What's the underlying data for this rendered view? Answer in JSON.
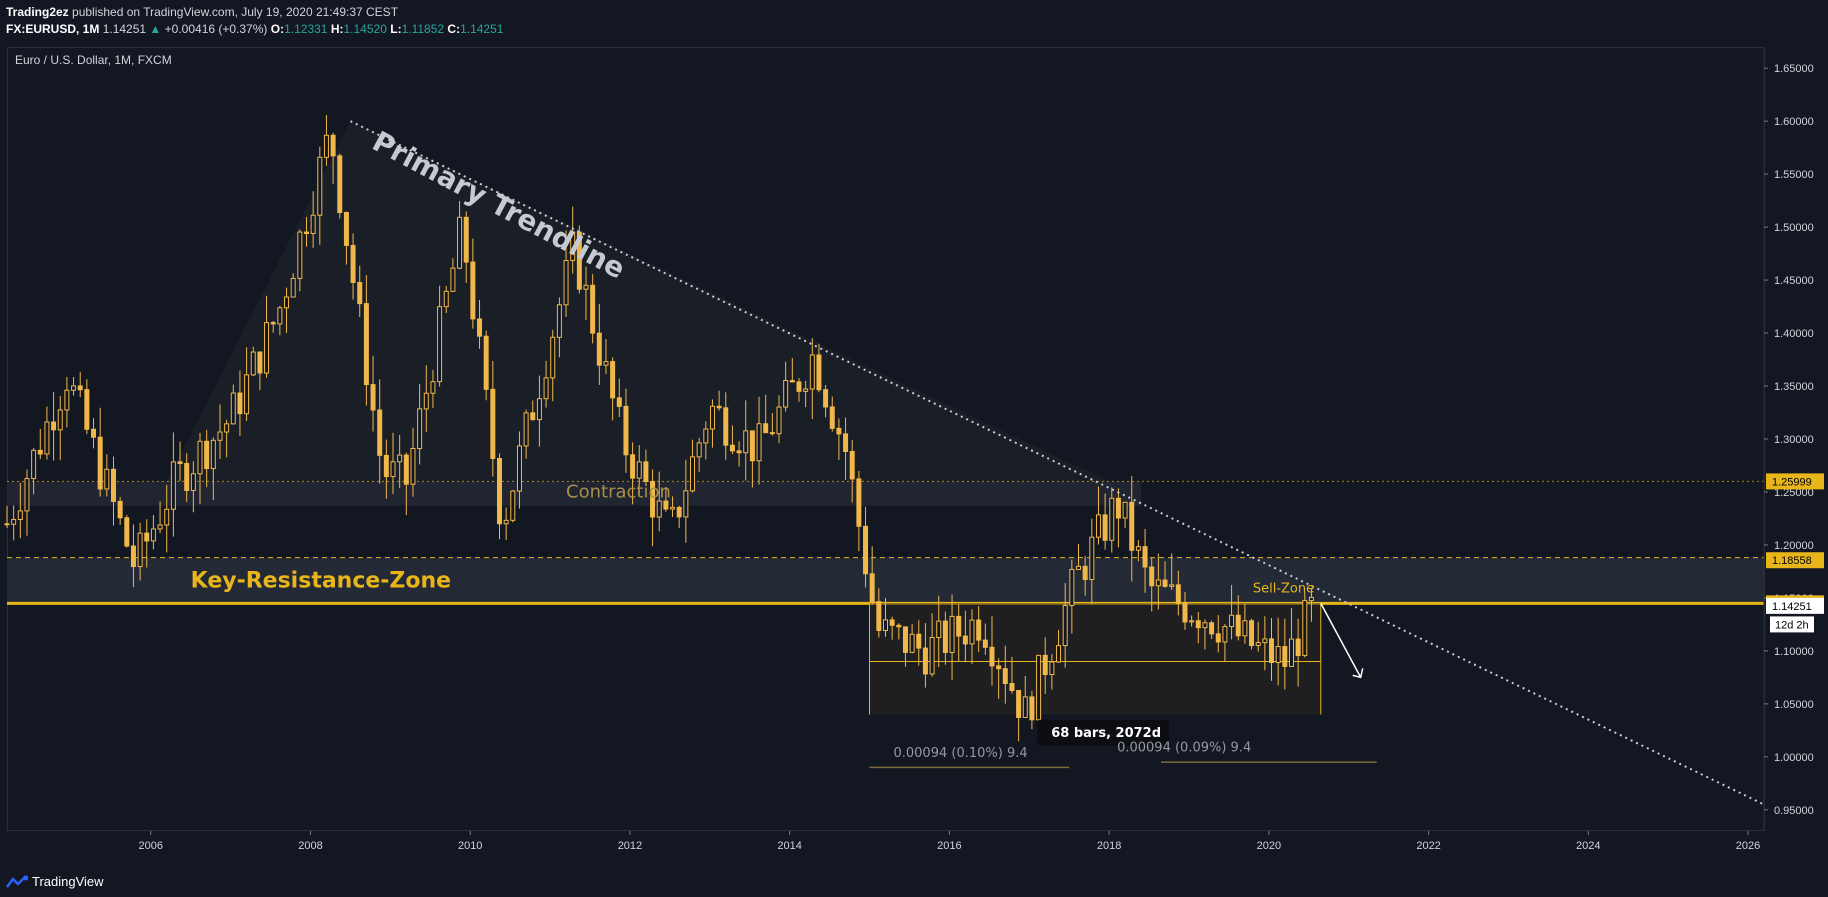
{
  "header": {
    "publisher": "Trading2ez",
    "published_text": "published on TradingView.com, July 19, 2020 21:49:37 CEST",
    "symbol": "FX:EURUSD, 1M",
    "last": "1.14251",
    "change": "+0.00416 (+0.37%)",
    "o_label": "O:",
    "o": "1.12331",
    "h_label": "H:",
    "h": "1.14520",
    "l_label": "L:",
    "l": "1.11852",
    "c_label": "C:",
    "c": "1.14251",
    "up_arrow": "▲"
  },
  "footer": {
    "brand": "TradingView"
  },
  "colors": {
    "bg": "#131722",
    "candle": "#f0b84a",
    "zone": "#242936",
    "accent": "#e8b51a",
    "text": "#d1d4dc"
  },
  "chart_data": {
    "type": "candlestick",
    "title": "Euro / U.S. Dollar, 1M, FXCM",
    "yrange": [
      0.93,
      1.67
    ],
    "xrange": [
      2004.2,
      2026.2
    ],
    "x_ticks": [
      "2006",
      "2008",
      "2010",
      "2012",
      "2014",
      "2016",
      "2018",
      "2020",
      "2022",
      "2024",
      "2026"
    ],
    "y_ticks": [
      "1.65000",
      "1.60000",
      "1.55000",
      "1.50000",
      "1.45000",
      "1.40000",
      "1.35000",
      "1.30000",
      "1.25000",
      "1.20000",
      "1.15000",
      "1.10000",
      "1.05000",
      "1.00000",
      "0.95000"
    ],
    "price_path": [
      [
        2004.2,
        1.22
      ],
      [
        2004.95,
        1.36
      ],
      [
        2005.8,
        1.18
      ],
      [
        2006.3,
        1.26
      ],
      [
        2007.0,
        1.32
      ],
      [
        2007.6,
        1.42
      ],
      [
        2008.25,
        1.59
      ],
      [
        2008.9,
        1.27
      ],
      [
        2009.2,
        1.26
      ],
      [
        2009.9,
        1.5
      ],
      [
        2010.4,
        1.22
      ],
      [
        2011.3,
        1.48
      ],
      [
        2011.9,
        1.3
      ],
      [
        2012.5,
        1.21
      ],
      [
        2013.0,
        1.33
      ],
      [
        2013.6,
        1.29
      ],
      [
        2014.3,
        1.38
      ],
      [
        2014.7,
        1.29
      ],
      [
        2015.1,
        1.12
      ],
      [
        2015.7,
        1.1
      ],
      [
        2016.4,
        1.13
      ],
      [
        2016.95,
        1.04
      ],
      [
        2017.6,
        1.17
      ],
      [
        2018.1,
        1.24
      ],
      [
        2018.5,
        1.16
      ],
      [
        2019.3,
        1.13
      ],
      [
        2019.9,
        1.1
      ],
      [
        2020.2,
        1.09
      ],
      [
        2020.55,
        1.14
      ]
    ],
    "price_labels": [
      {
        "value": 1.25999,
        "text": "1.25999",
        "style": "zone"
      },
      {
        "value": 1.18558,
        "text": "1.18558",
        "style": "zone"
      },
      {
        "value": 1.14487,
        "text": "1.14487",
        "style": "zone"
      },
      {
        "value": 1.14251,
        "text": "1.14251",
        "style": "last"
      }
    ],
    "countdown": "12d 2h",
    "annotations": {
      "trendline_label": "Primary Trendline",
      "contraction_label": "Contraction",
      "resistance_label": "Key-Resistance-Zone",
      "sell_zone_label": "Sell-Zone",
      "range_left": "0.00094 (0.10%) 9.4",
      "range_bars": "68 bars, 2072d",
      "range_right": "0.00094 (0.09%) 9.4"
    },
    "trendline": {
      "from": [
        2008.5,
        1.6
      ],
      "to": [
        2026.2,
        0.955
      ]
    },
    "key_resistance_zone": {
      "from": 1.145,
      "to": 1.188
    },
    "upper_zone": {
      "from": 1.237,
      "to": 1.26
    },
    "sell_zone_line": 1.14487,
    "range_box": {
      "x": [
        2015.0,
        2020.65
      ],
      "y": [
        1.04,
        1.145
      ],
      "mid": 1.09
    }
  }
}
